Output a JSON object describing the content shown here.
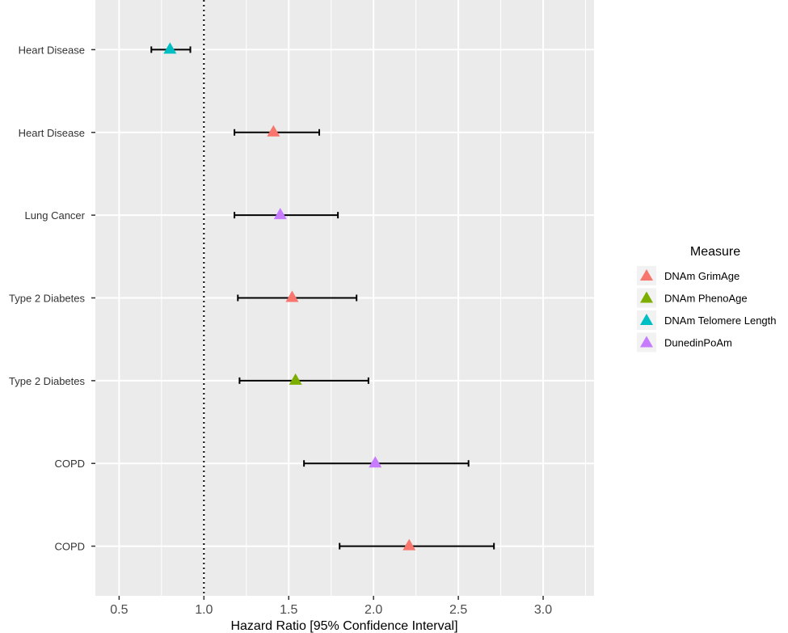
{
  "chart_data": {
    "type": "forest",
    "xlabel": "Hazard Ratio [95% Confidence Interval]",
    "ylabel": "",
    "xlim": [
      0.36,
      3.3
    ],
    "xticks": [
      "0.5",
      "1.0",
      "1.5",
      "2.0",
      "2.5",
      "3.0"
    ],
    "reference_line": 1.0,
    "grid": true,
    "legend": {
      "title": "Measure",
      "position": "right",
      "entries": [
        {
          "name": "DNAm GrimAge",
          "color": "#F8766D"
        },
        {
          "name": "DNAm PhenoAge",
          "color": "#7CAE00"
        },
        {
          "name": "DNAm Telomere Length",
          "color": "#00BFC4"
        },
        {
          "name": "DunedinPoAm",
          "color": "#C77CFF"
        }
      ]
    },
    "rows": [
      {
        "label": "Heart Disease",
        "measure": "DNAm Telomere Length",
        "hr": 0.8,
        "lower": 0.69,
        "upper": 0.92
      },
      {
        "label": "Heart Disease",
        "measure": "DNAm GrimAge",
        "hr": 1.41,
        "lower": 1.18,
        "upper": 1.68
      },
      {
        "label": "Lung Cancer",
        "measure": "DunedinPoAm",
        "hr": 1.45,
        "lower": 1.18,
        "upper": 1.79
      },
      {
        "label": "Type 2 Diabetes",
        "measure": "DNAm GrimAge",
        "hr": 1.52,
        "lower": 1.2,
        "upper": 1.9
      },
      {
        "label": "Type 2 Diabetes",
        "measure": "DNAm PhenoAge",
        "hr": 1.54,
        "lower": 1.21,
        "upper": 1.97
      },
      {
        "label": "COPD",
        "measure": "DunedinPoAm",
        "hr": 2.01,
        "lower": 1.59,
        "upper": 2.56
      },
      {
        "label": "COPD",
        "measure": "DNAm GrimAge",
        "hr": 2.21,
        "lower": 1.8,
        "upper": 2.71
      }
    ]
  }
}
